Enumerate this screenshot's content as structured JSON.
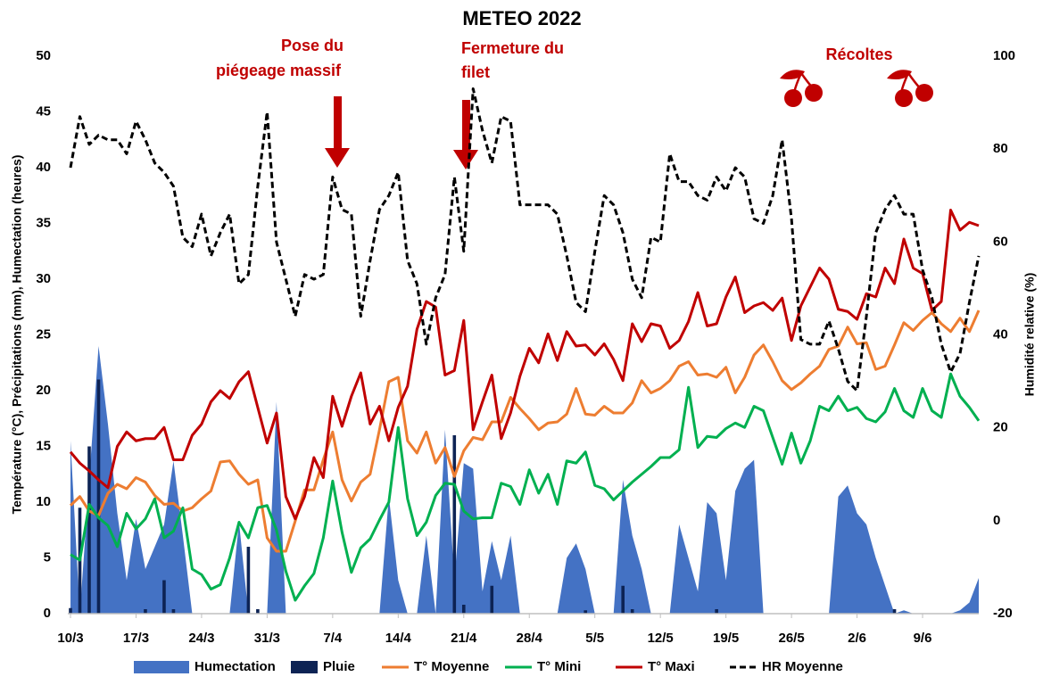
{
  "chart_data": {
    "type": "line",
    "title": "METEO 2022",
    "y_label": "Température (°C), Précipitations (mm), Humectation (heures)",
    "y2_label": "Humidité relative (%)",
    "ylim": [
      0,
      50
    ],
    "yticks": [
      0,
      5,
      10,
      15,
      20,
      25,
      30,
      35,
      40,
      45,
      50
    ],
    "y2lim": [
      -20,
      100
    ],
    "y2ticks": [
      -20,
      0,
      20,
      40,
      60,
      80,
      100
    ],
    "grid": false,
    "legend": "bottom",
    "categories": [
      "10/3",
      null,
      null,
      null,
      null,
      null,
      null,
      "17/3",
      null,
      null,
      null,
      null,
      null,
      null,
      "24/3",
      null,
      null,
      null,
      null,
      null,
      null,
      "31/3",
      null,
      null,
      null,
      null,
      null,
      null,
      "7/4",
      null,
      null,
      null,
      null,
      null,
      null,
      "14/4",
      null,
      null,
      null,
      null,
      null,
      null,
      "21/4",
      null,
      null,
      null,
      null,
      null,
      null,
      "28/4",
      null,
      null,
      null,
      null,
      null,
      null,
      "5/5",
      null,
      null,
      null,
      null,
      null,
      null,
      "12/5",
      null,
      null,
      null,
      null,
      null,
      null,
      "19/5",
      null,
      null,
      null,
      null,
      null,
      null,
      "26/5",
      null,
      null,
      null,
      null,
      null,
      null,
      "2/6",
      null,
      null,
      null,
      null,
      null,
      null,
      "9/6",
      null,
      null,
      null,
      null,
      null,
      null
    ],
    "series": [
      {
        "name": "Humectation",
        "type": "area",
        "color": "#4472c4",
        "values": [
          15.5,
          0,
          12,
          24,
          17,
          9,
          3,
          8.5,
          4,
          6,
          8,
          13.7,
          7,
          0,
          0,
          0,
          0,
          0,
          8.2,
          0,
          0,
          0,
          19,
          0,
          0,
          0,
          0,
          0,
          0,
          0,
          0,
          0,
          0,
          0,
          10.5,
          3,
          0,
          0,
          7,
          0,
          16.5,
          3,
          13.5,
          13,
          2,
          6.5,
          3,
          7,
          0,
          0,
          0,
          0,
          0,
          5,
          6.3,
          4,
          0,
          0,
          0,
          12,
          7,
          4,
          0,
          0,
          0,
          8,
          5,
          2,
          10,
          9,
          3,
          11,
          13,
          13.8,
          0,
          0,
          0,
          0,
          0,
          0,
          0,
          0,
          10.5,
          11.5,
          9,
          8,
          5,
          2.5,
          0,
          0.3,
          0,
          0,
          0,
          0,
          0,
          0.3,
          1,
          3.2
        ]
      },
      {
        "name": "Pluie",
        "type": "bar",
        "color": "#0d2354",
        "values": [
          0.5,
          9.5,
          15,
          21,
          0,
          0,
          0,
          0,
          0.4,
          0,
          3,
          0.4,
          0,
          0,
          0,
          0,
          0,
          0,
          0,
          6,
          0.4,
          0,
          0,
          0,
          0,
          0,
          0,
          0,
          0,
          0,
          0,
          0,
          0,
          0,
          0,
          0,
          0,
          0,
          0,
          0,
          0,
          16,
          0.8,
          0,
          0,
          2.5,
          0,
          0,
          0,
          0,
          0,
          0,
          0,
          0,
          0,
          0.3,
          0,
          0,
          0,
          2.5,
          0.4,
          0,
          0,
          0,
          0,
          0,
          0,
          0,
          0,
          0.4,
          0,
          0,
          0,
          0,
          0,
          0,
          0,
          0,
          0,
          0,
          0,
          0,
          0,
          0,
          0,
          0,
          0,
          0,
          0.4,
          0,
          0,
          0,
          0,
          0,
          0,
          0,
          0,
          0
        ]
      },
      {
        "name": "T° Moyenne",
        "type": "line",
        "color": "#ed7d31",
        "values": [
          9.7,
          10.5,
          9.2,
          8.8,
          10.8,
          11.6,
          11.2,
          12.2,
          11.8,
          10.6,
          9.8,
          9.9,
          9.2,
          9.5,
          10.3,
          11,
          13.6,
          13.7,
          12.5,
          11.6,
          12,
          6.8,
          5.6,
          5.6,
          8.3,
          11.1,
          11.1,
          13.8,
          16.3,
          12,
          10.1,
          11.8,
          12.5,
          16.5,
          20.8,
          21.2,
          15.5,
          14.4,
          16.3,
          13.5,
          14.9,
          12.3,
          14.6,
          15.8,
          15.6,
          17.2,
          17.2,
          19.4,
          18.4,
          17.5,
          16.5,
          17.1,
          17.2,
          17.9,
          20.2,
          17.9,
          17.8,
          18.6,
          18,
          18,
          18.9,
          20.9,
          19.8,
          20.2,
          20.9,
          22.2,
          22.6,
          21.4,
          21.5,
          21.2,
          22.1,
          19.8,
          21.2,
          23.2,
          24.1,
          22.6,
          20.9,
          20.1,
          20.7,
          21.5,
          22.2,
          23.7,
          24,
          25.7,
          24.2,
          24.3,
          21.9,
          22.2,
          24.1,
          26.1,
          25.4,
          26.3,
          27,
          26,
          25.3,
          26.5,
          25.3,
          27.2
        ]
      },
      {
        "name": "T° Mini",
        "type": "line",
        "color": "#00b050",
        "values": [
          5.3,
          4.8,
          9.8,
          8.6,
          7.9,
          6,
          9,
          7.6,
          8.5,
          10.3,
          6.8,
          7.4,
          9.5,
          4,
          3.5,
          2.2,
          2.6,
          5,
          8.2,
          6.8,
          9.5,
          9.7,
          7.5,
          3.8,
          1.2,
          2.5,
          3.6,
          6.8,
          11.9,
          7.3,
          3.7,
          5.9,
          6.7,
          8.4,
          10,
          16.7,
          10.3,
          7,
          8.2,
          10.6,
          11.7,
          11.6,
          9.2,
          8.5,
          8.6,
          8.6,
          11.7,
          11.4,
          9.8,
          12.9,
          10.8,
          12.5,
          9.8,
          13.7,
          13.5,
          14.5,
          11.5,
          11.2,
          10.2,
          11,
          11.8,
          12.5,
          13.2,
          14,
          14,
          14.7,
          20.3,
          14.9,
          15.9,
          15.8,
          16.6,
          17.1,
          16.7,
          18.6,
          18.2,
          15.8,
          13.4,
          16.2,
          13.5,
          15.5,
          18.6,
          18.2,
          19.5,
          18.2,
          18.5,
          17.5,
          17.2,
          18.1,
          20.2,
          18.2,
          17.6,
          20.2,
          18.2,
          17.6,
          21.5,
          19.5,
          18.5,
          17.3
        ]
      },
      {
        "name": "T° Maxi",
        "type": "line",
        "color": "#c00000",
        "values": [
          14.5,
          13.5,
          12.8,
          12,
          11.3,
          15,
          16.3,
          15.5,
          15.7,
          15.7,
          16.7,
          13.8,
          13.8,
          16,
          17,
          19,
          20,
          19.3,
          20.8,
          21.7,
          18.5,
          15.3,
          18,
          10.5,
          8.5,
          10.5,
          14,
          12.2,
          19.5,
          16.8,
          19.5,
          21.6,
          17,
          18.6,
          15.5,
          18.5,
          20.4,
          25.5,
          28,
          27.5,
          21.4,
          21.8,
          26.3,
          16.5,
          19,
          21.4,
          15.7,
          18,
          21.3,
          23.8,
          22.5,
          25.1,
          22.7,
          25.3,
          24,
          24.1,
          23.2,
          24.2,
          22.8,
          20.9,
          26,
          24.4,
          26,
          25.8,
          23.8,
          24.5,
          26.2,
          28.8,
          25.8,
          26,
          28.4,
          30.2,
          27,
          27.6,
          27.9,
          27.2,
          28.3,
          24.5,
          27.6,
          29.3,
          31,
          30,
          27.3,
          27.1,
          26.4,
          28.7,
          28.4,
          31,
          29.6,
          33.6,
          31,
          30.5,
          27.2,
          28,
          36.2,
          34.4,
          35.1,
          34.8
        ]
      },
      {
        "name": "HR Moyenne",
        "type": "line",
        "axis": "y2",
        "dash": true,
        "color": "#000000",
        "values": [
          76,
          87,
          81,
          83,
          82,
          82,
          79,
          86,
          82,
          77,
          75,
          72,
          61,
          59,
          66,
          57,
          62,
          66,
          51,
          53,
          72,
          88,
          60,
          52,
          44,
          53,
          52,
          53,
          74,
          67,
          66,
          44,
          56,
          67,
          70,
          75,
          56,
          51,
          38,
          48,
          53,
          74,
          58,
          93,
          84,
          77,
          87,
          86,
          68,
          68,
          68,
          68,
          66,
          57,
          47,
          45,
          58,
          70,
          68,
          62,
          52,
          48,
          61,
          60,
          79,
          73,
          73,
          70,
          69,
          74,
          71,
          76,
          74,
          65,
          64,
          70,
          82,
          65,
          39,
          38,
          38,
          43,
          37,
          30,
          28,
          44,
          62,
          67,
          70,
          66,
          66,
          54,
          48,
          38,
          32,
          36,
          47,
          57
        ]
      }
    ],
    "annotations": [
      {
        "text": [
          "Pose du",
          "piégeage massif"
        ]
      },
      {
        "text": [
          "Fermeture du",
          "filet"
        ]
      },
      {
        "text": [
          "Récoltes"
        ]
      }
    ]
  }
}
